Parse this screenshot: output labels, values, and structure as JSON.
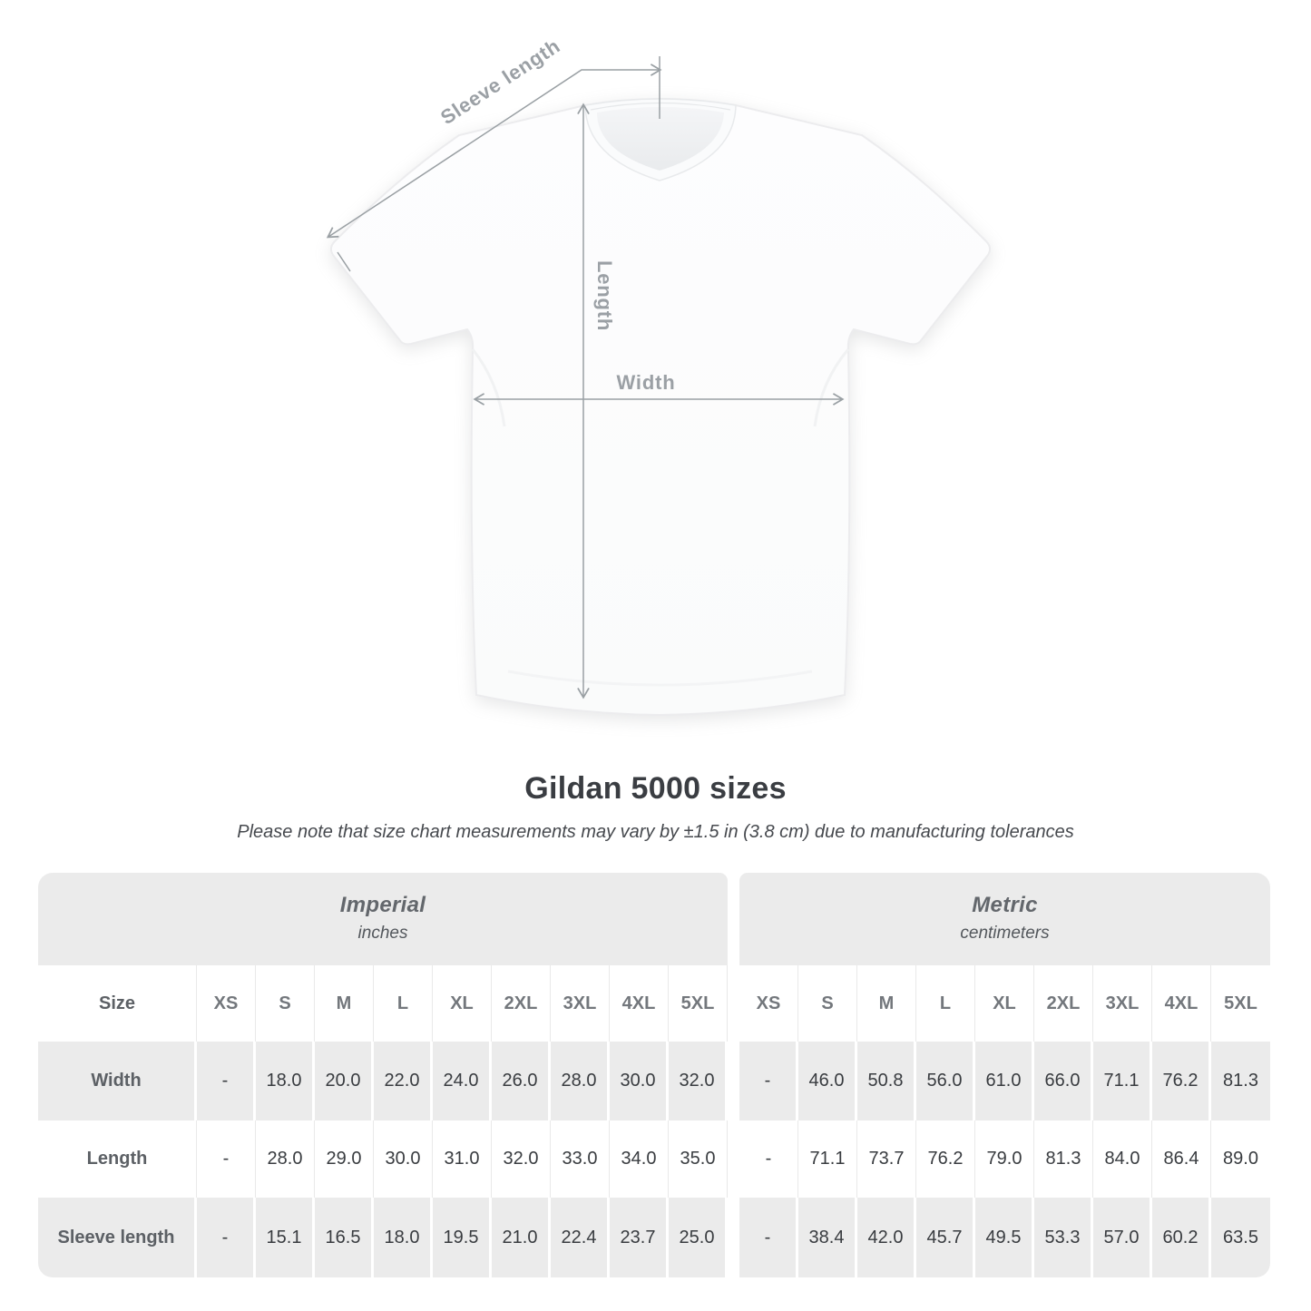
{
  "title": "Gildan 5000 sizes",
  "subtitle": "Please note that size chart measurements may vary by ±1.5 in (3.8 cm) due to manufacturing tolerances",
  "diagram": {
    "labels": {
      "sleeve_length": "Sleeve length",
      "length": "Length",
      "width": "Width"
    },
    "line_color": "#9aa0a4",
    "label_color": "#9ba0a5"
  },
  "colors": {
    "table_band": "#ebebeb",
    "row_alternate": "#ebebeb",
    "title_text": "#3a3d42",
    "header_text": "#73777c",
    "value_text": "#393c40"
  },
  "chart_data": {
    "type": "table",
    "title": "Gildan 5000 sizes",
    "unit_groups": [
      {
        "label": "Imperial",
        "unit": "inches"
      },
      {
        "label": "Metric",
        "unit": "centimeters"
      }
    ],
    "corner_label": "Size",
    "sizes": [
      "XS",
      "S",
      "M",
      "L",
      "XL",
      "2XL",
      "3XL",
      "4XL",
      "5XL"
    ],
    "rows": [
      {
        "label": "Width",
        "imperial": [
          "-",
          "18.0",
          "20.0",
          "22.0",
          "24.0",
          "26.0",
          "28.0",
          "30.0",
          "32.0"
        ],
        "metric": [
          "-",
          "46.0",
          "50.8",
          "56.0",
          "61.0",
          "66.0",
          "71.1",
          "76.2",
          "81.3"
        ]
      },
      {
        "label": "Length",
        "imperial": [
          "-",
          "28.0",
          "29.0",
          "30.0",
          "31.0",
          "32.0",
          "33.0",
          "34.0",
          "35.0"
        ],
        "metric": [
          "-",
          "71.1",
          "73.7",
          "76.2",
          "79.0",
          "81.3",
          "84.0",
          "86.4",
          "89.0"
        ]
      },
      {
        "label": "Sleeve length",
        "imperial": [
          "-",
          "15.1",
          "16.5",
          "18.0",
          "19.5",
          "21.0",
          "22.4",
          "23.7",
          "25.0"
        ],
        "metric": [
          "-",
          "38.4",
          "42.0",
          "45.7",
          "49.5",
          "53.3",
          "57.0",
          "60.2",
          "63.5"
        ]
      }
    ]
  }
}
